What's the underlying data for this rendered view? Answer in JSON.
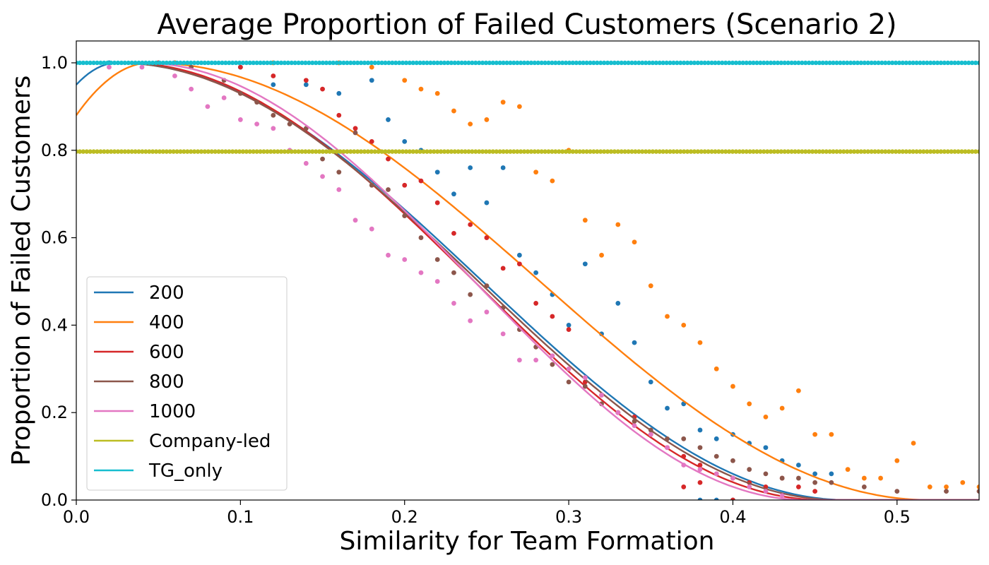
{
  "chart_data": {
    "type": "scatter",
    "title": "Average Proportion of Failed Customers (Scenario 2)",
    "xlabel": "Similarity for Team Formation",
    "ylabel": "Proportion of Failed Customers",
    "xlim": [
      0.0,
      0.55
    ],
    "ylim": [
      0.0,
      1.05
    ],
    "xticks": [
      "0.0",
      "0.1",
      "0.2",
      "0.3",
      "0.4",
      "0.5"
    ],
    "yticks": [
      "0.0",
      "0.2",
      "0.4",
      "0.6",
      "0.8",
      "1.0"
    ],
    "legend_position": "lower-left",
    "legend": [
      "200",
      "400",
      "600",
      "800",
      "1000",
      "Company-led",
      "TG_only"
    ],
    "series": [
      {
        "name": "200",
        "color": "#1f77b4",
        "fit_peak_x": 0.025,
        "fit_zero_x": 0.47,
        "fit_start_y": 0.95,
        "points": [
          [
            0.02,
            1.0
          ],
          [
            0.06,
            1.0
          ],
          [
            0.1,
            0.99
          ],
          [
            0.12,
            0.95
          ],
          [
            0.14,
            0.95
          ],
          [
            0.16,
            0.93
          ],
          [
            0.18,
            0.96
          ],
          [
            0.19,
            0.87
          ],
          [
            0.2,
            0.82
          ],
          [
            0.21,
            0.8
          ],
          [
            0.22,
            0.75
          ],
          [
            0.23,
            0.7
          ],
          [
            0.24,
            0.76
          ],
          [
            0.25,
            0.68
          ],
          [
            0.26,
            0.76
          ],
          [
            0.27,
            0.56
          ],
          [
            0.28,
            0.52
          ],
          [
            0.29,
            0.47
          ],
          [
            0.3,
            0.4
          ],
          [
            0.31,
            0.54
          ],
          [
            0.32,
            0.38
          ],
          [
            0.33,
            0.45
          ],
          [
            0.34,
            0.36
          ],
          [
            0.35,
            0.27
          ],
          [
            0.36,
            0.21
          ],
          [
            0.37,
            0.22
          ],
          [
            0.38,
            0.16
          ],
          [
            0.39,
            0.14
          ],
          [
            0.4,
            0.15
          ],
          [
            0.41,
            0.13
          ],
          [
            0.42,
            0.12
          ],
          [
            0.43,
            0.09
          ],
          [
            0.44,
            0.08
          ],
          [
            0.45,
            0.06
          ],
          [
            0.46,
            0.06
          ],
          [
            0.38,
            0.0
          ],
          [
            0.39,
            0.0
          ],
          [
            0.4,
            0.0
          ]
        ]
      },
      {
        "name": "400",
        "color": "#ff7f0e",
        "fit_peak_x": 0.045,
        "fit_zero_x": 0.52,
        "fit_start_y": 0.88,
        "points": [
          [
            0.06,
            1.0
          ],
          [
            0.12,
            1.0
          ],
          [
            0.16,
            1.0
          ],
          [
            0.18,
            0.99
          ],
          [
            0.2,
            0.96
          ],
          [
            0.21,
            0.94
          ],
          [
            0.22,
            0.93
          ],
          [
            0.23,
            0.89
          ],
          [
            0.24,
            0.86
          ],
          [
            0.25,
            0.87
          ],
          [
            0.26,
            0.91
          ],
          [
            0.27,
            0.9
          ],
          [
            0.28,
            0.75
          ],
          [
            0.29,
            0.73
          ],
          [
            0.3,
            0.8
          ],
          [
            0.31,
            0.64
          ],
          [
            0.32,
            0.56
          ],
          [
            0.33,
            0.63
          ],
          [
            0.34,
            0.59
          ],
          [
            0.35,
            0.49
          ],
          [
            0.36,
            0.42
          ],
          [
            0.37,
            0.4
          ],
          [
            0.38,
            0.36
          ],
          [
            0.39,
            0.3
          ],
          [
            0.4,
            0.26
          ],
          [
            0.41,
            0.22
          ],
          [
            0.42,
            0.19
          ],
          [
            0.43,
            0.21
          ],
          [
            0.44,
            0.25
          ],
          [
            0.45,
            0.15
          ],
          [
            0.46,
            0.15
          ],
          [
            0.47,
            0.07
          ],
          [
            0.48,
            0.05
          ],
          [
            0.49,
            0.05
          ],
          [
            0.5,
            0.09
          ],
          [
            0.51,
            0.13
          ],
          [
            0.52,
            0.03
          ],
          [
            0.53,
            0.03
          ],
          [
            0.54,
            0.04
          ],
          [
            0.55,
            0.03
          ]
        ]
      },
      {
        "name": "600",
        "color": "#d62728",
        "fit_peak_x": 0.03,
        "fit_zero_x": 0.455,
        "fit_start_y": 1.0,
        "points": [
          [
            0.05,
            1.0
          ],
          [
            0.1,
            0.99
          ],
          [
            0.12,
            0.97
          ],
          [
            0.14,
            0.96
          ],
          [
            0.15,
            0.94
          ],
          [
            0.16,
            0.88
          ],
          [
            0.17,
            0.85
          ],
          [
            0.18,
            0.82
          ],
          [
            0.19,
            0.78
          ],
          [
            0.2,
            0.72
          ],
          [
            0.21,
            0.73
          ],
          [
            0.22,
            0.68
          ],
          [
            0.23,
            0.61
          ],
          [
            0.24,
            0.63
          ],
          [
            0.25,
            0.6
          ],
          [
            0.26,
            0.53
          ],
          [
            0.27,
            0.54
          ],
          [
            0.28,
            0.45
          ],
          [
            0.29,
            0.42
          ],
          [
            0.3,
            0.39
          ],
          [
            0.31,
            0.27
          ],
          [
            0.32,
            0.24
          ],
          [
            0.33,
            0.2
          ],
          [
            0.34,
            0.19
          ],
          [
            0.35,
            0.15
          ],
          [
            0.36,
            0.12
          ],
          [
            0.37,
            0.1
          ],
          [
            0.38,
            0.08
          ],
          [
            0.39,
            0.06
          ],
          [
            0.4,
            0.05
          ],
          [
            0.41,
            0.04
          ],
          [
            0.42,
            0.03
          ],
          [
            0.43,
            0.05
          ],
          [
            0.44,
            0.03
          ],
          [
            0.45,
            0.02
          ],
          [
            0.37,
            0.03
          ],
          [
            0.38,
            0.04
          ],
          [
            0.4,
            0.0
          ]
        ]
      },
      {
        "name": "800",
        "color": "#8c564b",
        "fit_peak_x": 0.025,
        "fit_zero_x": 0.465,
        "fit_start_y": 1.0,
        "points": [
          [
            0.07,
            0.99
          ],
          [
            0.09,
            0.96
          ],
          [
            0.1,
            0.93
          ],
          [
            0.11,
            0.91
          ],
          [
            0.12,
            0.88
          ],
          [
            0.13,
            0.86
          ],
          [
            0.14,
            0.85
          ],
          [
            0.15,
            0.78
          ],
          [
            0.16,
            0.75
          ],
          [
            0.17,
            0.84
          ],
          [
            0.18,
            0.72
          ],
          [
            0.19,
            0.71
          ],
          [
            0.2,
            0.65
          ],
          [
            0.21,
            0.6
          ],
          [
            0.22,
            0.55
          ],
          [
            0.23,
            0.52
          ],
          [
            0.24,
            0.47
          ],
          [
            0.25,
            0.49
          ],
          [
            0.26,
            0.44
          ],
          [
            0.27,
            0.39
          ],
          [
            0.28,
            0.35
          ],
          [
            0.29,
            0.31
          ],
          [
            0.3,
            0.27
          ],
          [
            0.31,
            0.26
          ],
          [
            0.32,
            0.22
          ],
          [
            0.33,
            0.2
          ],
          [
            0.34,
            0.18
          ],
          [
            0.35,
            0.16
          ],
          [
            0.36,
            0.14
          ],
          [
            0.37,
            0.14
          ],
          [
            0.38,
            0.12
          ],
          [
            0.39,
            0.1
          ],
          [
            0.4,
            0.09
          ],
          [
            0.41,
            0.07
          ],
          [
            0.42,
            0.06
          ],
          [
            0.43,
            0.05
          ],
          [
            0.44,
            0.05
          ],
          [
            0.45,
            0.04
          ],
          [
            0.46,
            0.04
          ],
          [
            0.48,
            0.03
          ],
          [
            0.5,
            0.02
          ],
          [
            0.53,
            0.02
          ],
          [
            0.55,
            0.02
          ]
        ]
      },
      {
        "name": "1000",
        "color": "#e377c2",
        "fit_peak_x": 0.04,
        "fit_zero_x": 0.445,
        "fit_start_y": 1.0,
        "points": [
          [
            0.02,
            0.99
          ],
          [
            0.04,
            0.99
          ],
          [
            0.06,
            0.97
          ],
          [
            0.07,
            0.94
          ],
          [
            0.08,
            0.9
          ],
          [
            0.09,
            0.92
          ],
          [
            0.1,
            0.87
          ],
          [
            0.11,
            0.86
          ],
          [
            0.12,
            0.85
          ],
          [
            0.13,
            0.8
          ],
          [
            0.14,
            0.77
          ],
          [
            0.15,
            0.74
          ],
          [
            0.16,
            0.71
          ],
          [
            0.17,
            0.64
          ],
          [
            0.18,
            0.62
          ],
          [
            0.19,
            0.56
          ],
          [
            0.2,
            0.55
          ],
          [
            0.21,
            0.52
          ],
          [
            0.22,
            0.5
          ],
          [
            0.23,
            0.45
          ],
          [
            0.24,
            0.41
          ],
          [
            0.25,
            0.43
          ],
          [
            0.26,
            0.38
          ],
          [
            0.27,
            0.32
          ],
          [
            0.28,
            0.32
          ],
          [
            0.29,
            0.33
          ],
          [
            0.3,
            0.3
          ],
          [
            0.31,
            0.28
          ],
          [
            0.32,
            0.24
          ],
          [
            0.33,
            0.2
          ],
          [
            0.34,
            0.17
          ],
          [
            0.35,
            0.15
          ],
          [
            0.36,
            0.12
          ],
          [
            0.37,
            0.08
          ],
          [
            0.38,
            0.07
          ],
          [
            0.39,
            0.06
          ],
          [
            0.4,
            0.05
          ],
          [
            0.41,
            0.03
          ],
          [
            0.42,
            0.02
          ],
          [
            0.43,
            0.01
          ]
        ]
      },
      {
        "name": "Company-led",
        "color": "#bcbd22",
        "constant": 0.797
      },
      {
        "name": "TG_only",
        "color": "#17becf",
        "constant": 1.0
      }
    ]
  }
}
